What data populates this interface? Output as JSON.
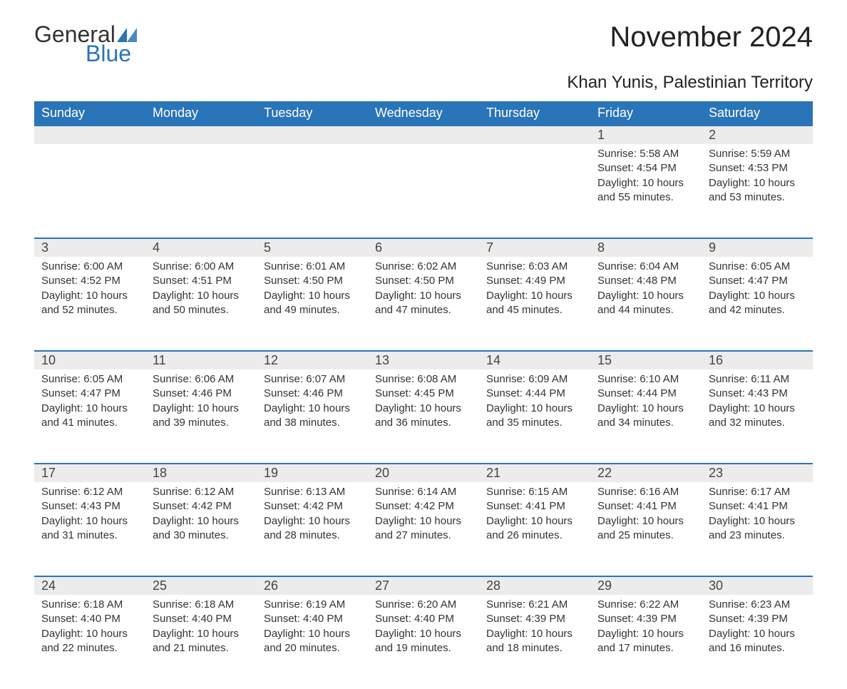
{
  "logo": {
    "general": "General",
    "blue": "Blue",
    "icon_color": "#2a74b8"
  },
  "title": "November 2024",
  "location": "Khan Yunis, Palestinian Territory",
  "colors": {
    "header_bg": "#2a74b8",
    "header_text": "#ffffff",
    "daynum_bg": "#ececec",
    "border": "#2a74b8",
    "text": "#333333",
    "page_bg": "#ffffff"
  },
  "fonts": {
    "title_size": 40,
    "location_size": 24,
    "header_size": 18,
    "body_size": 15
  },
  "day_headers": [
    "Sunday",
    "Monday",
    "Tuesday",
    "Wednesday",
    "Thursday",
    "Friday",
    "Saturday"
  ],
  "weeks": [
    [
      null,
      null,
      null,
      null,
      null,
      {
        "n": "1",
        "sr": "5:58 AM",
        "ss": "4:54 PM",
        "dl": "10 hours and 55 minutes."
      },
      {
        "n": "2",
        "sr": "5:59 AM",
        "ss": "4:53 PM",
        "dl": "10 hours and 53 minutes."
      }
    ],
    [
      {
        "n": "3",
        "sr": "6:00 AM",
        "ss": "4:52 PM",
        "dl": "10 hours and 52 minutes."
      },
      {
        "n": "4",
        "sr": "6:00 AM",
        "ss": "4:51 PM",
        "dl": "10 hours and 50 minutes."
      },
      {
        "n": "5",
        "sr": "6:01 AM",
        "ss": "4:50 PM",
        "dl": "10 hours and 49 minutes."
      },
      {
        "n": "6",
        "sr": "6:02 AM",
        "ss": "4:50 PM",
        "dl": "10 hours and 47 minutes."
      },
      {
        "n": "7",
        "sr": "6:03 AM",
        "ss": "4:49 PM",
        "dl": "10 hours and 45 minutes."
      },
      {
        "n": "8",
        "sr": "6:04 AM",
        "ss": "4:48 PM",
        "dl": "10 hours and 44 minutes."
      },
      {
        "n": "9",
        "sr": "6:05 AM",
        "ss": "4:47 PM",
        "dl": "10 hours and 42 minutes."
      }
    ],
    [
      {
        "n": "10",
        "sr": "6:05 AM",
        "ss": "4:47 PM",
        "dl": "10 hours and 41 minutes."
      },
      {
        "n": "11",
        "sr": "6:06 AM",
        "ss": "4:46 PM",
        "dl": "10 hours and 39 minutes."
      },
      {
        "n": "12",
        "sr": "6:07 AM",
        "ss": "4:46 PM",
        "dl": "10 hours and 38 minutes."
      },
      {
        "n": "13",
        "sr": "6:08 AM",
        "ss": "4:45 PM",
        "dl": "10 hours and 36 minutes."
      },
      {
        "n": "14",
        "sr": "6:09 AM",
        "ss": "4:44 PM",
        "dl": "10 hours and 35 minutes."
      },
      {
        "n": "15",
        "sr": "6:10 AM",
        "ss": "4:44 PM",
        "dl": "10 hours and 34 minutes."
      },
      {
        "n": "16",
        "sr": "6:11 AM",
        "ss": "4:43 PM",
        "dl": "10 hours and 32 minutes."
      }
    ],
    [
      {
        "n": "17",
        "sr": "6:12 AM",
        "ss": "4:43 PM",
        "dl": "10 hours and 31 minutes."
      },
      {
        "n": "18",
        "sr": "6:12 AM",
        "ss": "4:42 PM",
        "dl": "10 hours and 30 minutes."
      },
      {
        "n": "19",
        "sr": "6:13 AM",
        "ss": "4:42 PM",
        "dl": "10 hours and 28 minutes."
      },
      {
        "n": "20",
        "sr": "6:14 AM",
        "ss": "4:42 PM",
        "dl": "10 hours and 27 minutes."
      },
      {
        "n": "21",
        "sr": "6:15 AM",
        "ss": "4:41 PM",
        "dl": "10 hours and 26 minutes."
      },
      {
        "n": "22",
        "sr": "6:16 AM",
        "ss": "4:41 PM",
        "dl": "10 hours and 25 minutes."
      },
      {
        "n": "23",
        "sr": "6:17 AM",
        "ss": "4:41 PM",
        "dl": "10 hours and 23 minutes."
      }
    ],
    [
      {
        "n": "24",
        "sr": "6:18 AM",
        "ss": "4:40 PM",
        "dl": "10 hours and 22 minutes."
      },
      {
        "n": "25",
        "sr": "6:18 AM",
        "ss": "4:40 PM",
        "dl": "10 hours and 21 minutes."
      },
      {
        "n": "26",
        "sr": "6:19 AM",
        "ss": "4:40 PM",
        "dl": "10 hours and 20 minutes."
      },
      {
        "n": "27",
        "sr": "6:20 AM",
        "ss": "4:40 PM",
        "dl": "10 hours and 19 minutes."
      },
      {
        "n": "28",
        "sr": "6:21 AM",
        "ss": "4:39 PM",
        "dl": "10 hours and 18 minutes."
      },
      {
        "n": "29",
        "sr": "6:22 AM",
        "ss": "4:39 PM",
        "dl": "10 hours and 17 minutes."
      },
      {
        "n": "30",
        "sr": "6:23 AM",
        "ss": "4:39 PM",
        "dl": "10 hours and 16 minutes."
      }
    ]
  ],
  "labels": {
    "sunrise": "Sunrise:",
    "sunset": "Sunset:",
    "daylight": "Daylight:"
  }
}
